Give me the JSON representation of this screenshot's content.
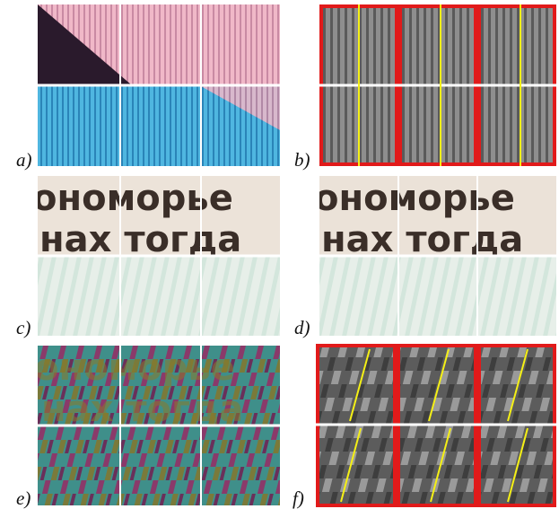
{
  "figure": {
    "panels": [
      {
        "id": "a",
        "label": "a)"
      },
      {
        "id": "b",
        "label": "b)"
      },
      {
        "id": "c",
        "label": "c)"
      },
      {
        "id": "d",
        "label": "d)"
      },
      {
        "id": "e",
        "label": "e)"
      },
      {
        "id": "f",
        "label": "f)"
      }
    ],
    "overlay_text": {
      "line1": "ономорье",
      "line2": "нах тогда"
    },
    "colors": {
      "pink": "#e8a9bd",
      "blue": "#39a6d6",
      "dark": "#2b1b2e",
      "gray_light": "#9a9a9a",
      "gray_dark": "#555555",
      "highlight_red": "#e11a1a",
      "highlight_yellow": "#f5f016",
      "cream": "#ece3d9",
      "pale_green": "#dfeee6",
      "teal": "#3f8f8a",
      "magenta": "#8a3a6a",
      "olive": "#7a7a3a"
    }
  }
}
